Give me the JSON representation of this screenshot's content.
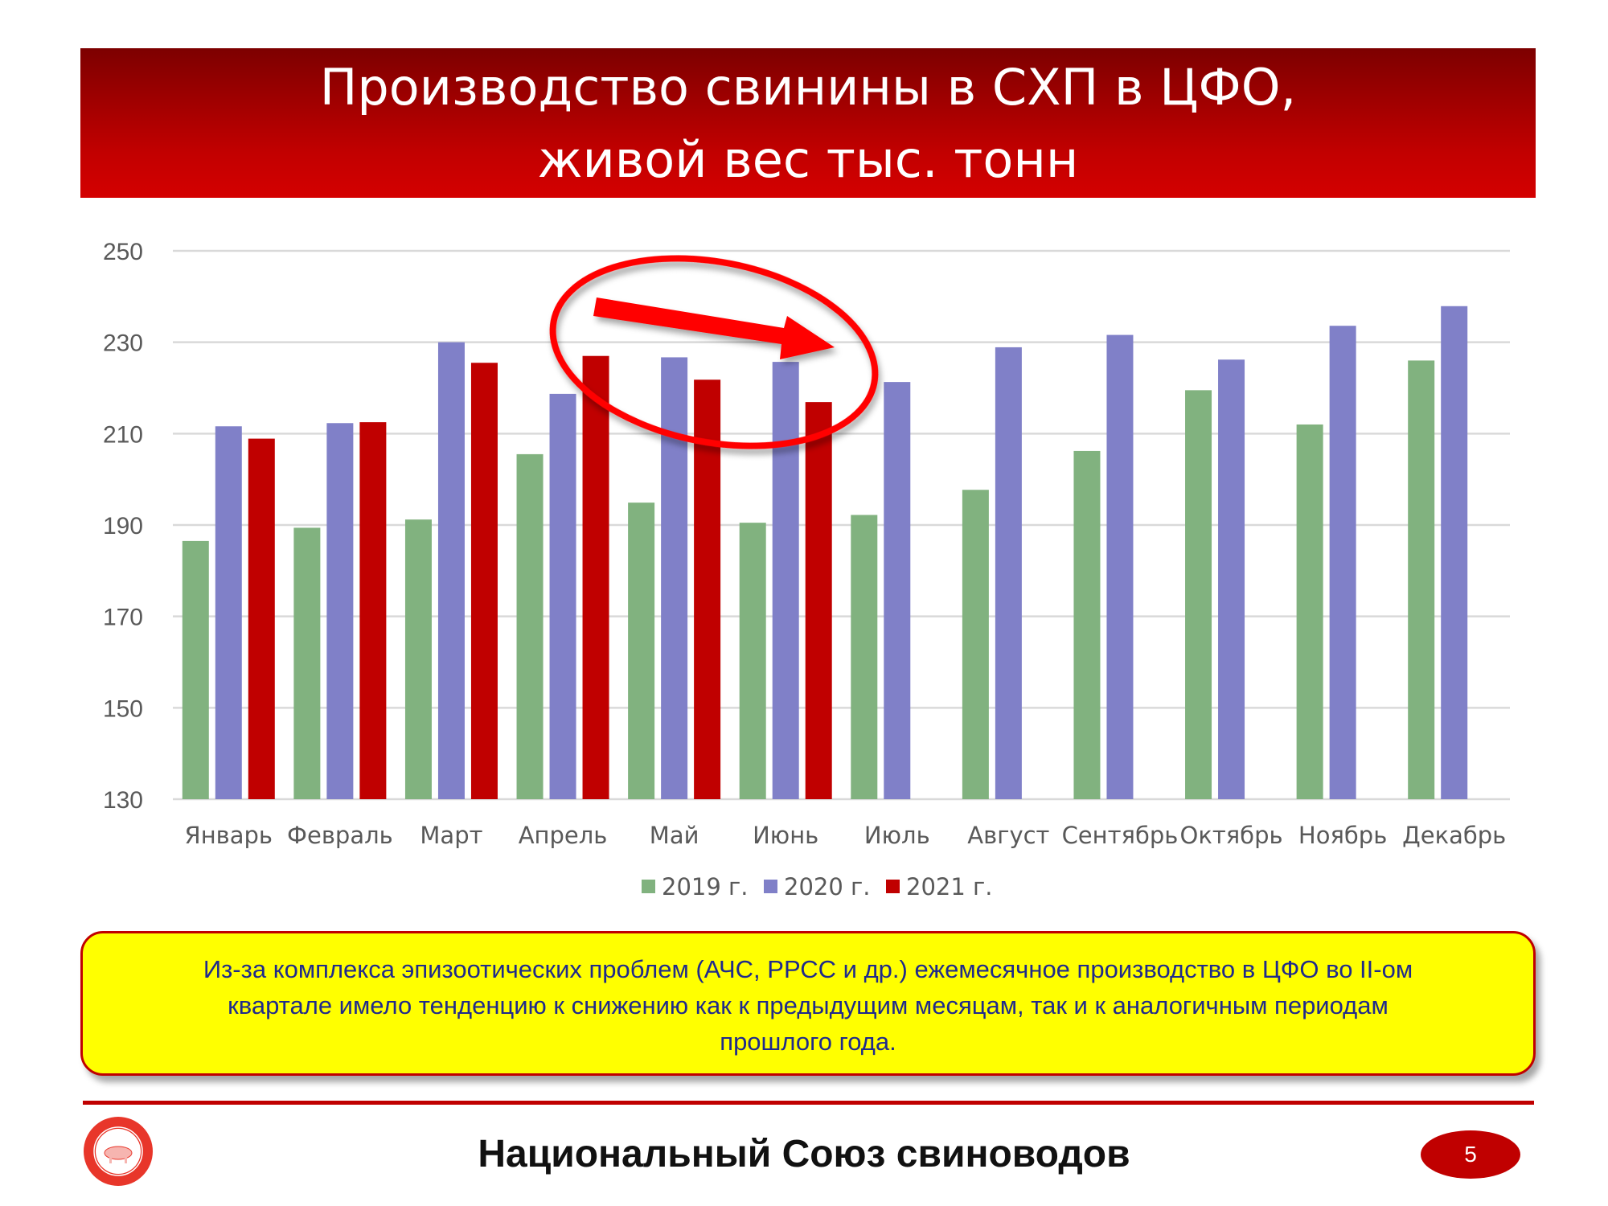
{
  "header": {
    "title_line1": "Производство свинины в СХП в ЦФО,",
    "title_line2": "живой вес тыс. тонн"
  },
  "chart_data": {
    "type": "bar",
    "title": "",
    "xlabel": "",
    "ylabel": "",
    "ylim": [
      130,
      250
    ],
    "yticks": [
      "130",
      "150",
      "170",
      "190",
      "210",
      "230",
      "250"
    ],
    "grid": true,
    "legend_position": "bottom",
    "categories": [
      "Январь",
      "Февраль",
      "Март",
      "Апрель",
      "Май",
      "Июнь",
      "Июль",
      "Август",
      "Сентябрь",
      "Октябрь",
      "Ноябрь",
      "Декабрь"
    ],
    "series": [
      {
        "name": "2019 г.",
        "color": "#81b27f",
        "values": [
          186.5,
          189.4,
          191.2,
          205.5,
          194.9,
          190.5,
          192.2,
          197.7,
          206.2,
          219.5,
          212.0,
          226.0
        ]
      },
      {
        "name": "2020 г.",
        "color": "#8080c8",
        "values": [
          211.6,
          212.3,
          230.0,
          218.7,
          226.7,
          225.7,
          221.3,
          228.9,
          231.6,
          226.2,
          233.6,
          237.9
        ]
      },
      {
        "name": "2021 г.",
        "color": "#c00000",
        "values": [
          208.9,
          212.5,
          225.5,
          227.0,
          221.8,
          216.9,
          null,
          null,
          null,
          null,
          null,
          null
        ]
      }
    ],
    "annotation": {
      "shape": "ellipse-with-arrow",
      "color": "#ff0000",
      "highlight": "Апрель–Июнь 2021 downward trend"
    }
  },
  "note": {
    "text_line1": "Из-за комплекса эпизоотических проблем (АЧС, РРСС и др.) ежемесячное производство в ЦФО во II-ом",
    "text_line2": "квартале имело тенденцию к снижению как к  предыдущим месяцам, так и к аналогичным периодам",
    "text_line3": "прошлого года."
  },
  "footer": {
    "organization": "Национальный Союз свиноводов",
    "logo_text": "Национальный Союз Свиноводов",
    "page_number": "5"
  },
  "colors": {
    "brand_red": "#c00000",
    "note_background": "#ffff00",
    "note_text": "#1f2a8c"
  }
}
